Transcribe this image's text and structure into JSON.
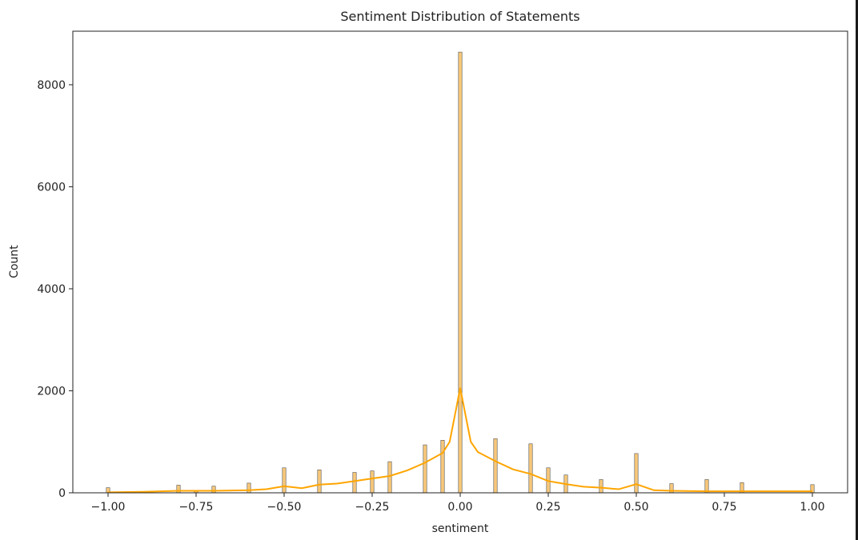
{
  "chart_data": {
    "type": "bar",
    "title": "Sentiment Distribution of Statements",
    "xlabel": "sentiment",
    "ylabel": "Count",
    "xlim": [
      -1.1,
      1.1
    ],
    "ylim": [
      0,
      9050
    ],
    "x_ticks": [
      -1.0,
      -0.75,
      -0.5,
      -0.25,
      0.0,
      0.25,
      0.5,
      0.75,
      1.0
    ],
    "x_tick_labels": [
      "−1.00",
      "−0.75",
      "−0.50",
      "−0.25",
      "0.00",
      "0.25",
      "0.50",
      "0.75",
      "1.00"
    ],
    "y_ticks": [
      0,
      2000,
      4000,
      6000,
      8000
    ],
    "y_tick_labels": [
      "0",
      "2000",
      "4000",
      "6000",
      "8000"
    ],
    "grid": false,
    "colors": {
      "bar_fill": "#f7c77a",
      "bar_edge": "#555555",
      "kde_line": "#ffa500",
      "axis": "#222222"
    },
    "histogram": {
      "bin_width": 0.01,
      "bin_counts": [
        {
          "x": -1.0,
          "count": 100
        },
        {
          "x": -0.8,
          "count": 150
        },
        {
          "x": -0.75,
          "count": 50
        },
        {
          "x": -0.7,
          "count": 130
        },
        {
          "x": -0.6,
          "count": 190
        },
        {
          "x": -0.5,
          "count": 490
        },
        {
          "x": -0.4,
          "count": 450
        },
        {
          "x": -0.3,
          "count": 400
        },
        {
          "x": -0.25,
          "count": 430
        },
        {
          "x": -0.2,
          "count": 610
        },
        {
          "x": -0.1,
          "count": 940
        },
        {
          "x": -0.05,
          "count": 1030
        },
        {
          "x": 0.0,
          "count": 8640
        },
        {
          "x": 0.1,
          "count": 1060
        },
        {
          "x": 0.2,
          "count": 960
        },
        {
          "x": 0.25,
          "count": 490
        },
        {
          "x": 0.3,
          "count": 350
        },
        {
          "x": 0.4,
          "count": 260
        },
        {
          "x": 0.5,
          "count": 770
        },
        {
          "x": 0.6,
          "count": 180
        },
        {
          "x": 0.7,
          "count": 260
        },
        {
          "x": 0.8,
          "count": 200
        },
        {
          "x": 1.0,
          "count": 160
        }
      ]
    },
    "kde": {
      "x": [
        -1.0,
        -0.9,
        -0.8,
        -0.7,
        -0.6,
        -0.55,
        -0.5,
        -0.45,
        -0.4,
        -0.35,
        -0.3,
        -0.25,
        -0.2,
        -0.15,
        -0.1,
        -0.05,
        -0.03,
        -0.01,
        0.0,
        0.01,
        0.03,
        0.05,
        0.1,
        0.15,
        0.2,
        0.25,
        0.3,
        0.35,
        0.4,
        0.45,
        0.5,
        0.55,
        0.6,
        0.7,
        0.8,
        0.9,
        1.0
      ],
      "y": [
        10,
        20,
        40,
        40,
        50,
        70,
        130,
        90,
        160,
        180,
        230,
        280,
        330,
        440,
        590,
        780,
        1000,
        1700,
        2060,
        1700,
        1000,
        800,
        620,
        460,
        370,
        230,
        170,
        120,
        100,
        70,
        170,
        50,
        40,
        30,
        30,
        30,
        30
      ]
    }
  }
}
